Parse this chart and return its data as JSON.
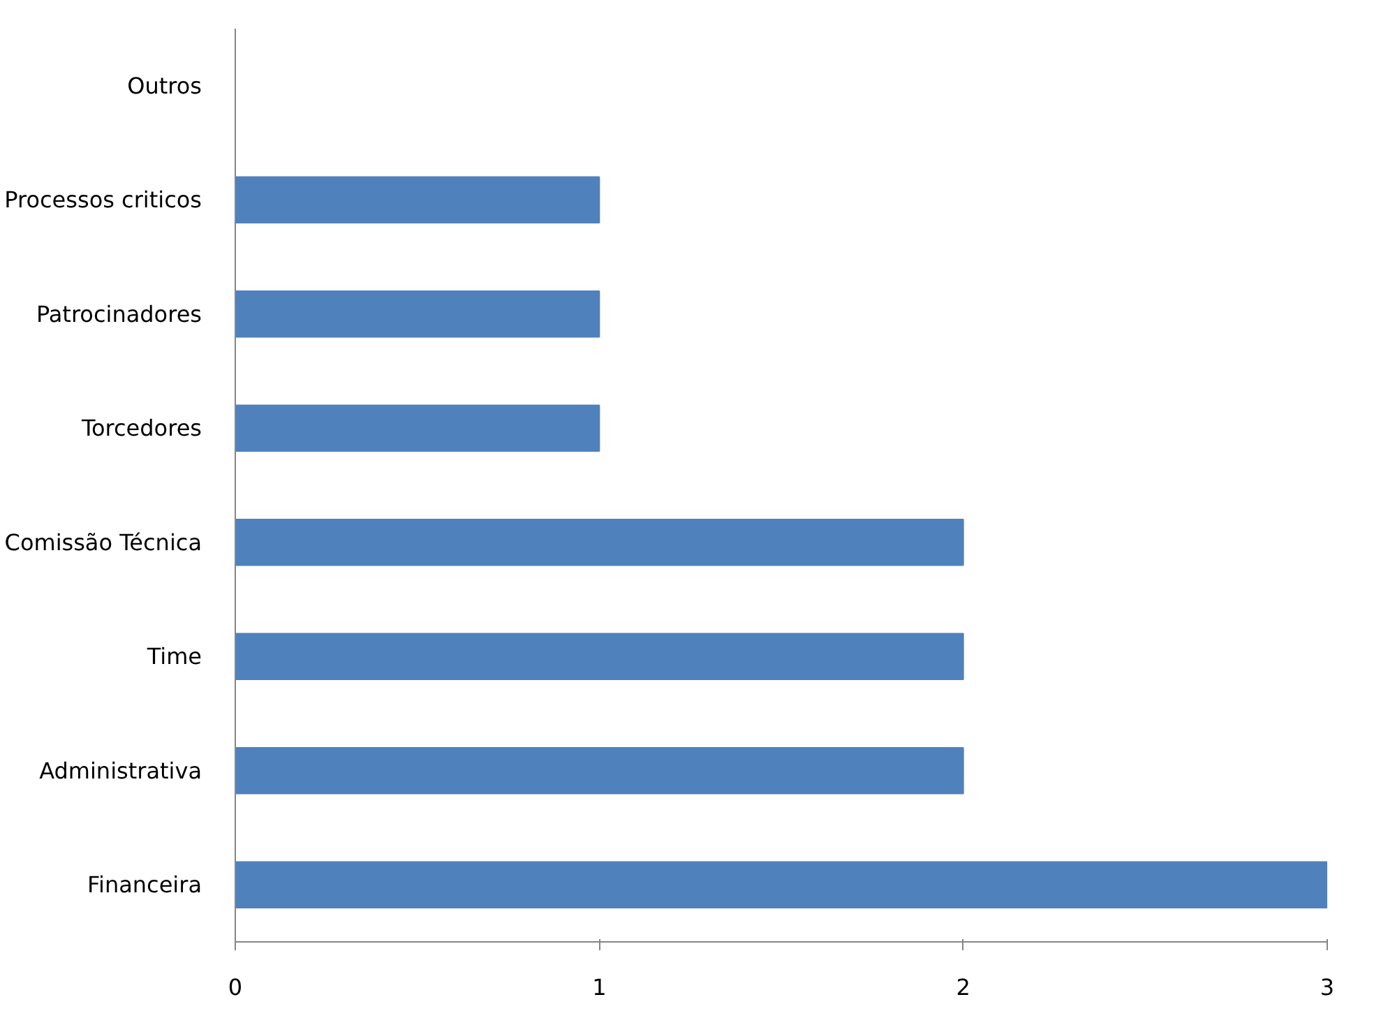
{
  "chart_data": {
    "type": "bar",
    "orientation": "horizontal",
    "categories": [
      "Outros",
      "Processos criticos",
      "Patrocinadores",
      "Torcedores",
      "Comissão Técnica",
      "Time",
      "Administrativa",
      "Financeira"
    ],
    "values": [
      0,
      1,
      1,
      1,
      2,
      2,
      2,
      3
    ],
    "color": "#4f81bd",
    "xlim": [
      0,
      3
    ],
    "xticks": [
      0,
      1,
      2,
      3
    ],
    "grid": false
  }
}
